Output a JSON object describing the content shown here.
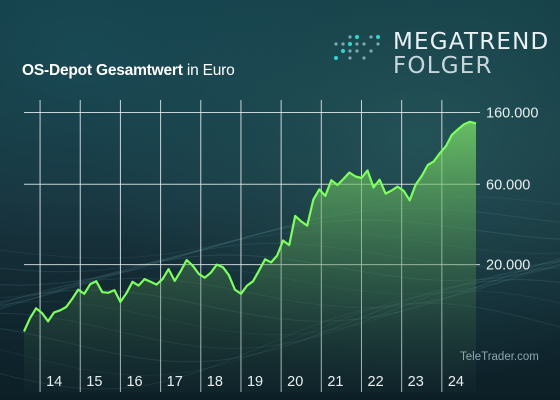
{
  "title_bold": "OS-Depot Gesamtwert",
  "title_rest": " in Euro",
  "brand_line1": "MEGATREND",
  "brand_line2": "FOLGER",
  "credit": "TeleTrader.com",
  "brand_icon": "dot-grid-arrow-icon",
  "colors": {
    "background": "#0f2630",
    "line": "#7dff5c",
    "area_top": "#7fe36a",
    "area_bottom": "#223c3a",
    "grid": "#e6eef0",
    "dots_accent": "#2fd3c9"
  },
  "chart_data": {
    "type": "area",
    "y_scale": "log",
    "ylim": [
      4600,
      190000
    ],
    "y_ticks": [
      {
        "value": 20000,
        "label": "20.000"
      },
      {
        "value": 60000,
        "label": "60.000"
      },
      {
        "value": 160000,
        "label": "160.000"
      }
    ],
    "x_ticks": [
      "14",
      "15",
      "16",
      "17",
      "18",
      "19",
      "20",
      "21",
      "22",
      "23",
      "24"
    ],
    "xlim": [
      2013.6,
      2024.95
    ],
    "grid": true,
    "series": [
      {
        "x": [
          2013.6,
          2013.75,
          2013.9,
          2014.05,
          2014.2,
          2014.35,
          2014.5,
          2014.65,
          2014.8,
          2014.95,
          2015.1,
          2015.25,
          2015.4,
          2015.55,
          2015.7,
          2015.85,
          2016.0,
          2016.15,
          2016.3,
          2016.45,
          2016.6,
          2016.75,
          2016.9,
          2017.05,
          2017.2,
          2017.35,
          2017.5,
          2017.65,
          2017.8,
          2017.95,
          2018.1,
          2018.25,
          2018.4,
          2018.55,
          2018.7,
          2018.85,
          2019.0,
          2019.15,
          2019.3,
          2019.45,
          2019.6,
          2019.75,
          2019.9,
          2020.05,
          2020.2,
          2020.35,
          2020.5,
          2020.65,
          2020.8,
          2020.95,
          2021.1,
          2021.25,
          2021.4,
          2021.55,
          2021.7,
          2021.85,
          2022.0,
          2022.15,
          2022.3,
          2022.45,
          2022.6,
          2022.75,
          2022.9,
          2023.05,
          2023.2,
          2023.35,
          2023.5,
          2023.65,
          2023.8,
          2023.95,
          2024.1,
          2024.25,
          2024.4,
          2024.55,
          2024.7,
          2024.85
        ],
        "y": [
          8000,
          9600,
          11000,
          10300,
          9200,
          10400,
          10700,
          11200,
          12500,
          14200,
          13400,
          15300,
          15900,
          13700,
          13600,
          14100,
          12000,
          13500,
          15800,
          15000,
          16400,
          15800,
          15200,
          16400,
          18800,
          16000,
          18300,
          21300,
          19700,
          17600,
          16700,
          17900,
          20000,
          19300,
          17300,
          14200,
          13400,
          15000,
          15900,
          18400,
          21500,
          20600,
          22600,
          27800,
          26100,
          38900,
          36100,
          34100,
          48600,
          55900,
          51200,
          63300,
          59400,
          64500,
          70500,
          66700,
          65400,
          72500,
          57400,
          63900,
          52800,
          55100,
          58100,
          54800,
          48200,
          59700,
          67200,
          78100,
          82000,
          91600,
          101000,
          118000,
          127000,
          136000,
          141000,
          138000
        ]
      }
    ]
  }
}
